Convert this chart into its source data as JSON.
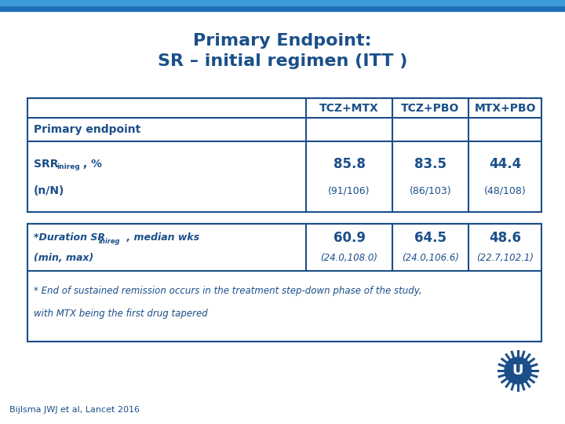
{
  "title_line1": "Primary Endpoint:",
  "title_line2": "SR – initial regimen (ITT )",
  "title_color": "#1B4F8A",
  "background_color": "#FFFFFF",
  "top_bar_color1": "#1B6DB5",
  "top_bar_color2": "#1B4F8A",
  "table1": {
    "headers": [
      "TCZ+MTX",
      "TCZ+PBO",
      "MTX+PBO"
    ],
    "row1_label": "Primary endpoint",
    "row2_val1": "85.8",
    "row2_val1_sub": "(91/106)",
    "row2_val2": "83.5",
    "row2_val2_sub": "(86/103)",
    "row2_val3": "44.4",
    "row2_val3_sub": "(48/108)"
  },
  "table2": {
    "val1": "60.9",
    "val1_sub": "(24.0,108.0)",
    "val2": "64.5",
    "val2_sub": "(24.0,106.6)",
    "val3": "48.6",
    "val3_sub": "(22.7,102.1)",
    "footnote1": "* End of sustained remission occurs in the treatment step-down phase of the study,",
    "footnote2": "with MTX being the first drug tapered"
  },
  "footer_text": "Bijlsma JWJ et al, Lancet 2016",
  "text_color": "#1B4F8A",
  "border_color": "#1B4F8A"
}
